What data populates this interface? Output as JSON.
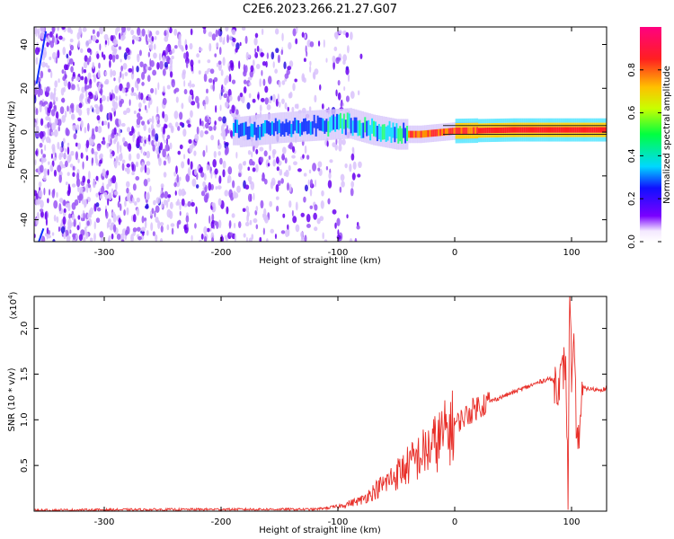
{
  "title": "C2E6.2023.266.21.27.G07",
  "colors": {
    "snr_line": "#e8302a",
    "axis": "#000000",
    "background": "#ffffff"
  },
  "chart_data": [
    {
      "type": "heatmap",
      "xlabel": "Height of straight line (km)",
      "ylabel": "Frequency (Hz)",
      "xlim": [
        -360,
        130
      ],
      "ylim": [
        -50,
        48
      ],
      "x_ticks": [
        -300,
        -200,
        -100,
        0,
        100
      ],
      "x_tick_labels": [
        "-300",
        "-200",
        "-100",
        "0",
        "100"
      ],
      "y_ticks": [
        -40,
        -20,
        0,
        20,
        40
      ],
      "y_tick_labels": [
        "-40",
        "-20",
        "0",
        "20",
        "40"
      ],
      "colorbar": {
        "label": "Normalized spectral amplitude",
        "range": [
          0,
          1
        ],
        "ticks": [
          0.0,
          0.2,
          0.4,
          0.6,
          0.8
        ],
        "tick_labels": [
          "0.0",
          "0.2",
          "0.4",
          "0.6",
          "0.8"
        ],
        "colormap": "rainbow (white/violet low → red/magenta high)"
      },
      "noise_region_x": [
        -360,
        -100
      ],
      "signal_track": [
        {
          "x": -185,
          "f": 0
        },
        {
          "x": -150,
          "f": 2
        },
        {
          "x": -120,
          "f": 3
        },
        {
          "x": -90,
          "f": 4
        },
        {
          "x": -70,
          "f": 1
        },
        {
          "x": -50,
          "f": -1
        },
        {
          "x": -30,
          "f": -1
        },
        {
          "x": 0,
          "f": 0.5
        },
        {
          "x": 50,
          "f": 1
        },
        {
          "x": 100,
          "f": 1
        },
        {
          "x": 130,
          "f": 1
        }
      ]
    },
    {
      "type": "line",
      "xlabel": "Height of straight line (km)",
      "ylabel": "SNR (10 * v/v)",
      "y_multiplier_label": "(x10",
      "y_multiplier_exp": "4",
      "xlim": [
        -360,
        130
      ],
      "ylim": [
        0,
        23500
      ],
      "x_ticks": [
        -300,
        -200,
        -100,
        0,
        100
      ],
      "x_tick_labels": [
        "-300",
        "-200",
        "-100",
        "0",
        "100"
      ],
      "y_ticks": [
        5000,
        10000,
        15000,
        20000
      ],
      "y_tick_labels": [
        "0.5",
        "1.0",
        "1.5",
        "2.0"
      ],
      "series": [
        {
          "x": [
            -360,
            -300,
            -200,
            -120,
            -100,
            -80,
            -60,
            -40,
            -20,
            0,
            20,
            40,
            60,
            70,
            80,
            90,
            95,
            97,
            98,
            99,
            100,
            102,
            105,
            110,
            120,
            130
          ],
          "values": [
            100,
            150,
            200,
            200,
            500,
            1200,
            3000,
            5000,
            7000,
            9500,
            11500,
            12500,
            13500,
            14000,
            14500,
            14000,
            16500,
            2000,
            20000,
            23500,
            13000,
            17000,
            7000,
            13500,
            13300,
            13400
          ]
        }
      ]
    }
  ]
}
